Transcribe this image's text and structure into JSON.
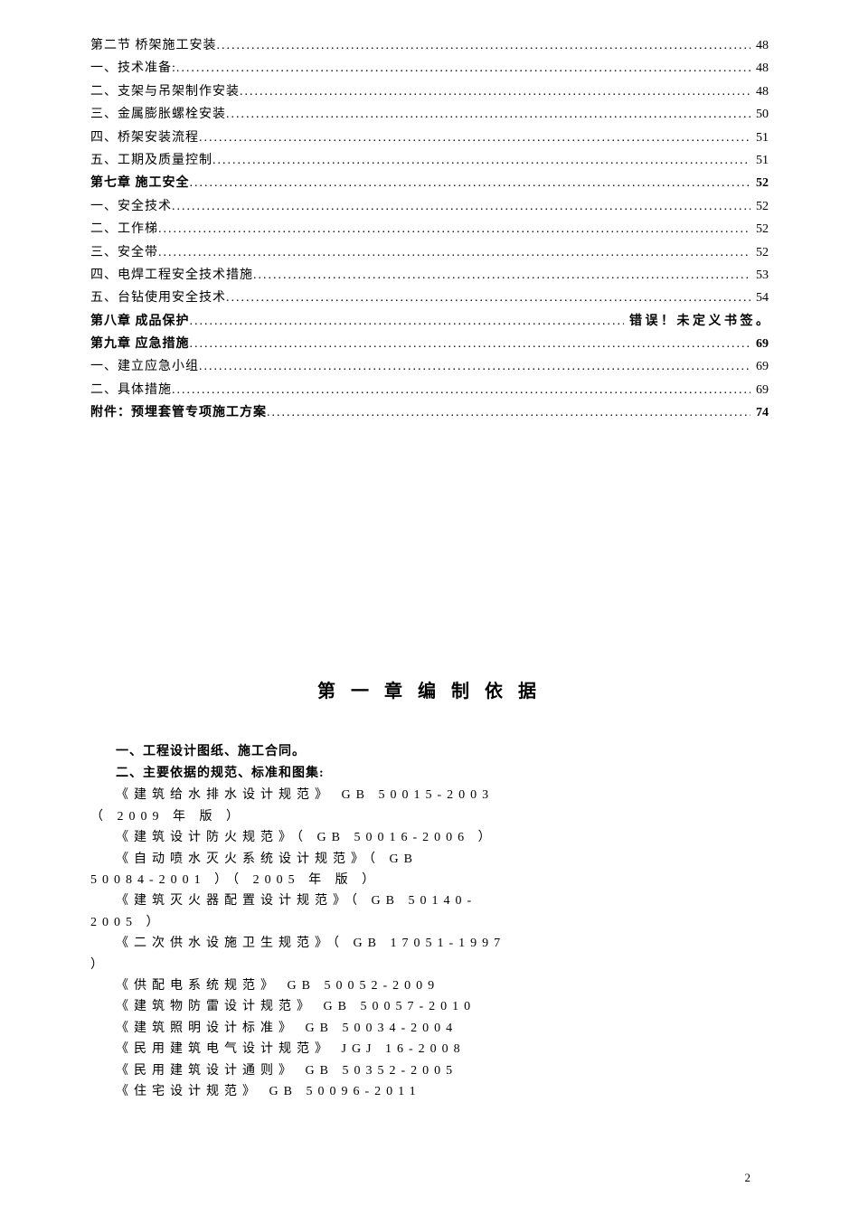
{
  "toc": [
    {
      "label": "第二节    桥架施工安装",
      "page": "48",
      "bold": false,
      "indent": 0
    },
    {
      "label": "一、技术准备:",
      "page": "48",
      "bold": false,
      "indent": 0
    },
    {
      "label": "二、支架与吊架制作安装",
      "page": "48",
      "bold": false,
      "indent": 0
    },
    {
      "label": "三、金属膨胀螺栓安装",
      "page": "50",
      "bold": false,
      "indent": 0
    },
    {
      "label": "四、桥架安装流程",
      "page": "51",
      "bold": false,
      "indent": 0
    },
    {
      "label": "五、工期及质量控制",
      "page": "51",
      "bold": false,
      "indent": 0
    },
    {
      "label": "第七章  施工安全",
      "page": "52",
      "bold": true,
      "indent": 0
    },
    {
      "label": "一、安全技术",
      "page": "52",
      "bold": false,
      "indent": 0
    },
    {
      "label": "二、工作梯",
      "page": "52",
      "bold": false,
      "indent": 0
    },
    {
      "label": "三、安全带",
      "page": "52",
      "bold": false,
      "indent": 0
    },
    {
      "label": "四、电焊工程安全技术措施",
      "page": "53",
      "bold": false,
      "indent": 0
    },
    {
      "label": "五、台钻使用安全技术",
      "page": "54",
      "bold": false,
      "indent": 0
    },
    {
      "label": "第八章  成品保护",
      "page": "错 误 ！ 未 定 义 书 签 。",
      "bold": true,
      "indent": 0,
      "nodots_page": true
    },
    {
      "label": "第九章    应急措施",
      "page": "69",
      "bold": true,
      "indent": 0
    },
    {
      "label": "一、建立应急小组",
      "page": "69",
      "bold": false,
      "indent": 0
    },
    {
      "label": "二、具体措施",
      "page": "69",
      "bold": false,
      "indent": 0
    },
    {
      "label": "附件：预埋套管专项施工方案",
      "page": "74",
      "bold": true,
      "indent": 0
    }
  ],
  "chapter_title": "第 一 章    编 制 依 据",
  "section1": "一、工程设计图纸、施工合同。",
  "section2": "二、主要依据的规范、标准和图集:",
  "refs": [
    {
      "l1": "《建筑给水排水设计规范》  GB 50015-2003",
      "l2": "（  2009  年 版 ）"
    },
    {
      "l1": "《建筑设计防火规范》（  GB 50016-2006  ）",
      "l2": ""
    },
    {
      "l1": "《自动喷水灭火系统设计规范》（  GB",
      "l2": "50084-2001  ）（  2005  年 版 ）"
    },
    {
      "l1": "《建筑灭火器配置设计规范》（  GB 50140-",
      "l2": "2005  ）"
    },
    {
      "l1": "《二次供水设施卫生规范》（  GB 17051-1997",
      "l2": "）"
    },
    {
      "l1": "《供配电系统规范》  GB 50052-2009",
      "l2": ""
    },
    {
      "l1": "《建筑物防雷设计规范》  GB 50057-2010",
      "l2": ""
    },
    {
      "l1": "《建筑照明设计标准》  GB 50034-2004",
      "l2": ""
    },
    {
      "l1": "《民用建筑电气设计规范》    JGJ 16-2008",
      "l2": ""
    },
    {
      "l1": "《民用建筑设计通则》  GB 50352-2005",
      "l2": ""
    },
    {
      "l1": "《住宅设计规范》  GB 50096-2011",
      "l2": ""
    }
  ],
  "page_number": "2",
  "colors": {
    "bg": "#ffffff",
    "text": "#000000"
  },
  "fonts": {
    "body": 14,
    "title": 20
  }
}
